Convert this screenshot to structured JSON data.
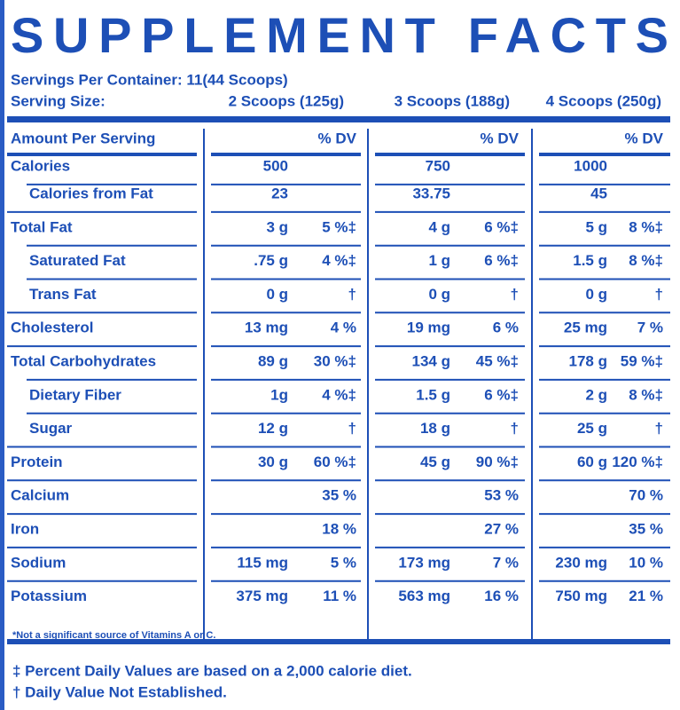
{
  "title": "SUPPLEMENT FACTS",
  "servings_per_container": "Servings Per Container: 11(44 Scoops)",
  "serving_size_label": "Serving Size:",
  "serving_sizes": [
    "2 Scoops (125g)",
    "3 Scoops (188g)",
    "4 Scoops (250g)"
  ],
  "table": {
    "header": "Amount Per Serving",
    "dv_headers": [
      "% DV",
      "% DV",
      "% DV"
    ],
    "rows": [
      [
        "Calories",
        "500",
        null,
        "750",
        null,
        "1000",
        null
      ],
      [
        "Calories from Fat",
        "23",
        null,
        "33.75",
        null,
        "45",
        null
      ],
      [
        "Total Fat",
        "3 g",
        "5 %‡",
        "4 g",
        "6 %‡",
        "5 g",
        "8 %‡"
      ],
      [
        "Saturated Fat",
        ".75 g",
        "4 %‡",
        "1 g",
        "6 %‡",
        "1.5 g",
        "8 %‡"
      ],
      [
        "Trans Fat",
        "0 g",
        "†",
        "0 g",
        "†",
        "0 g",
        "†"
      ],
      [
        "Cholesterol",
        "13 mg",
        "4 %",
        "19 mg",
        "6 %",
        "25 mg",
        "7 %"
      ],
      [
        "Total Carbohydrates",
        "89 g",
        "30 %‡",
        "134 g",
        "45 %‡",
        "178 g",
        "59 %‡"
      ],
      [
        "Dietary Fiber",
        "1g",
        "4 %‡",
        "1.5 g",
        "6 %‡",
        "2 g",
        "8 %‡"
      ],
      [
        "Sugar",
        "12 g",
        "†",
        "18 g",
        "†",
        "25 g",
        "†"
      ],
      [
        "Protein",
        "30 g",
        "60 %‡",
        "45 g",
        "90 %‡",
        "60 g",
        "120 %‡"
      ],
      [
        "Calcium",
        null,
        "35 %",
        null,
        "53 %",
        null,
        "70 %"
      ],
      [
        "Iron",
        null,
        "18 %",
        null,
        "27 %",
        null,
        "35 %"
      ],
      [
        "Sodium",
        "115 mg",
        "5 %",
        "173 mg",
        "7 %",
        "230 mg",
        "10 %"
      ],
      [
        "Potassium",
        "375 mg",
        "11 %",
        "563 mg",
        "16 %",
        "750 mg",
        "21 %"
      ]
    ]
  },
  "table_note": "*Not a significant source of Vitamins A or C.",
  "footnotes": [
    "‡ Percent Daily Values are based on a 2,000 calorie diet.",
    "† Daily Value Not Established."
  ]
}
